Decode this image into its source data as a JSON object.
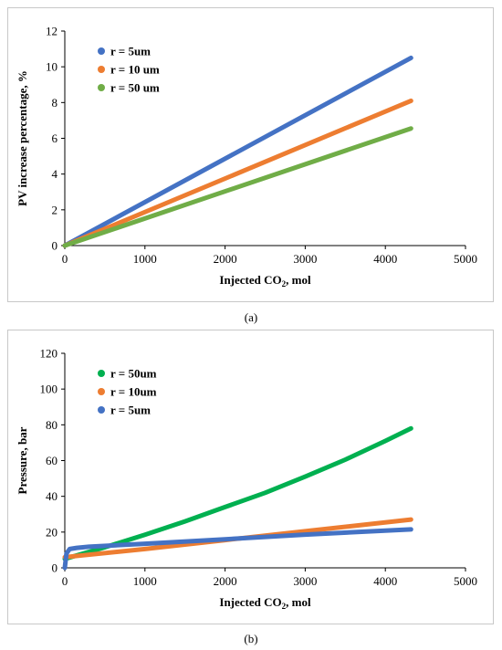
{
  "chart_data": [
    {
      "type": "line",
      "caption": "(a)",
      "ylabel": "PV increase percentage, %",
      "xlabel_main": "Injected CO",
      "xlabel_sub": "2",
      "xlabel_tail": ", mol",
      "xlim": [
        0,
        5000
      ],
      "ylim": [
        0,
        12
      ],
      "xticks": [
        0,
        1000,
        2000,
        3000,
        4000,
        5000
      ],
      "yticks": [
        0,
        2,
        4,
        6,
        8,
        10,
        12
      ],
      "grid": false,
      "legend_position": "top-left",
      "series": [
        {
          "name": "r = 5um",
          "color": "#4472C4",
          "x": [
            0,
            4320
          ],
          "y": [
            0,
            10.5
          ]
        },
        {
          "name": "r = 10 um",
          "color": "#ED7D31",
          "x": [
            0,
            4320
          ],
          "y": [
            0,
            8.1
          ]
        },
        {
          "name": "r = 50 um",
          "color": "#70AD47",
          "x": [
            0,
            4320
          ],
          "y": [
            0,
            6.55
          ]
        }
      ]
    },
    {
      "type": "line",
      "caption": "(b)",
      "ylabel": "Pressure, bar",
      "xlabel_main": "Injected CO",
      "xlabel_sub": "2",
      "xlabel_tail": ", mol",
      "xlim": [
        0,
        5000
      ],
      "ylim": [
        0,
        120
      ],
      "xticks": [
        0,
        1000,
        2000,
        3000,
        4000,
        5000
      ],
      "yticks": [
        0,
        20,
        40,
        60,
        80,
        100,
        120
      ],
      "grid": false,
      "legend_position": "top-left",
      "series": [
        {
          "name": "r = 50um",
          "color": "#00B050",
          "x": [
            0,
            500,
            1000,
            1500,
            2000,
            2500,
            3000,
            3500,
            4000,
            4320
          ],
          "y": [
            5,
            11.5,
            18.5,
            26,
            34,
            42,
            51,
            60.5,
            71,
            78
          ]
        },
        {
          "name": "r = 10um",
          "color": "#ED7D31",
          "x": [
            0,
            1000,
            2000,
            3000,
            4320
          ],
          "y": [
            6,
            10.5,
            15.5,
            20.5,
            27
          ]
        },
        {
          "name": "r = 5um",
          "color": "#4472C4",
          "x": [
            0,
            20,
            60,
            150,
            300,
            1000,
            2000,
            3000,
            4320
          ],
          "y": [
            0,
            8,
            10.5,
            11.2,
            11.8,
            13.5,
            16,
            18.6,
            21.5
          ]
        }
      ]
    }
  ]
}
